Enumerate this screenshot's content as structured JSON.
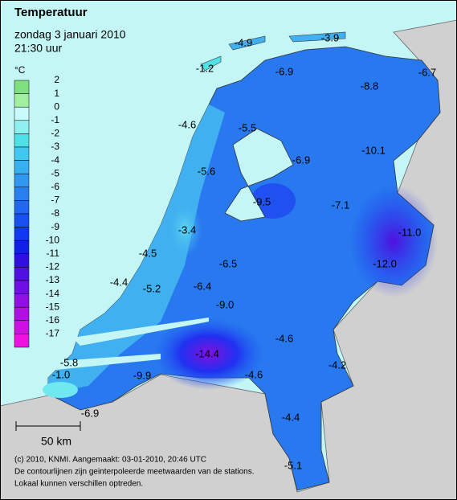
{
  "header": {
    "title": "Temperatuur",
    "date": "zondag 3 januari 2010",
    "time": "21:30 uur"
  },
  "legend": {
    "unit": "°C",
    "items": [
      {
        "value": 2,
        "color": "#80e080"
      },
      {
        "value": 1,
        "color": "#a0f0a0"
      },
      {
        "value": 0,
        "color": "#c8fcfc"
      },
      {
        "value": -1,
        "color": "#90f0f0"
      },
      {
        "value": -2,
        "color": "#50e0e8"
      },
      {
        "value": -3,
        "color": "#40c8f0"
      },
      {
        "value": -4,
        "color": "#38b0f0"
      },
      {
        "value": -5,
        "color": "#3098f0"
      },
      {
        "value": -6,
        "color": "#2880f0"
      },
      {
        "value": -7,
        "color": "#2068f0"
      },
      {
        "value": -8,
        "color": "#1850f0"
      },
      {
        "value": -9,
        "color": "#1038f0"
      },
      {
        "value": -10,
        "color": "#1020e8"
      },
      {
        "value": -11,
        "color": "#3010e0"
      },
      {
        "value": -12,
        "color": "#5010e0"
      },
      {
        "value": -13,
        "color": "#7010e0"
      },
      {
        "value": -14,
        "color": "#9010e0"
      },
      {
        "value": -15,
        "color": "#b010e0"
      },
      {
        "value": -16,
        "color": "#d010e0"
      },
      {
        "value": -17,
        "color": "#f010e0"
      }
    ]
  },
  "stations": [
    "-4.9",
    "-3.9",
    "-1.2",
    "-6.9",
    "-6.7",
    "-8.8",
    "-4.6",
    "-5.5",
    "-6.9",
    "-10.1",
    "-5.6",
    "-9.5",
    "-7.1",
    "-3.4",
    "-11.0",
    "-4.5",
    "-12.0",
    "-6.5",
    "-4.4",
    "-5.2",
    "-6.4",
    "-9.0",
    "-14.4",
    "-4.6",
    "-4.2",
    "-5.8",
    "-9.9",
    "-4.6",
    "-1.0",
    "-6.9",
    "-4.4",
    "-5.1"
  ],
  "scale": "50 km",
  "footer": [
    "(c) 2010, KNMI. Aangemaakt: 03-01-2010, 20:46 UTC",
    "De contourlijnen zijn geinterpoleerde meetwaarden van de stations.",
    "Lokaal kunnen verschillen optreden."
  ]
}
